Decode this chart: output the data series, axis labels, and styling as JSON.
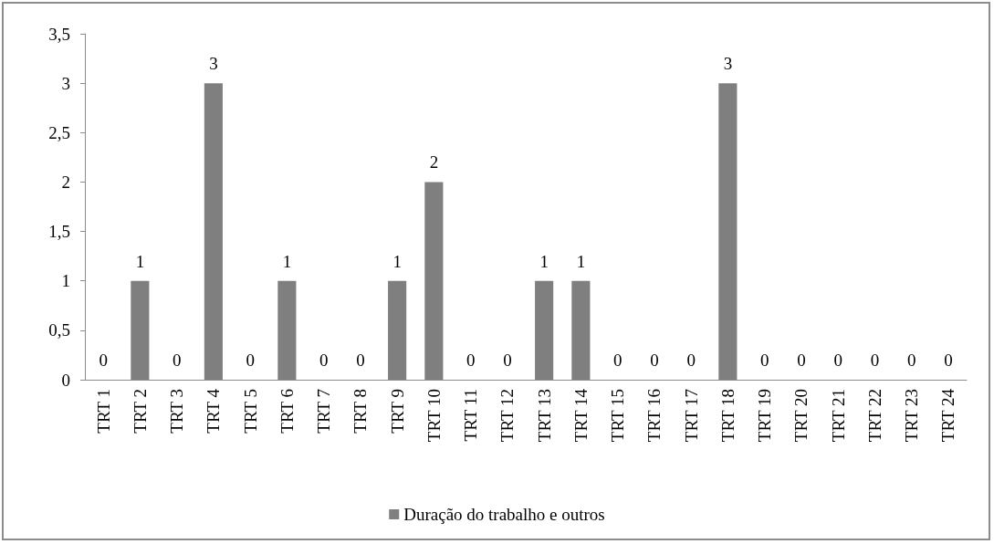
{
  "chart_data": {
    "type": "bar",
    "categories": [
      "TRT 1",
      "TRT 2",
      "TRT 3",
      "TRT 4",
      "TRT 5",
      "TRT 6",
      "TRT 7",
      "TRT 8",
      "TRT 9",
      "TRT 10",
      "TRT 11",
      "TRT 12",
      "TRT 13",
      "TRT 14",
      "TRT 15",
      "TRT 16",
      "TRT 17",
      "TRT 18",
      "TRT 19",
      "TRT 20",
      "TRT 21",
      "TRT 22",
      "TRT 23",
      "TRT 24"
    ],
    "series": [
      {
        "name": "Duração do trabalho e outros",
        "color": "#7f7f7f",
        "values": [
          0,
          1,
          0,
          3,
          0,
          1,
          0,
          0,
          1,
          2,
          0,
          0,
          1,
          1,
          0,
          0,
          0,
          3,
          0,
          0,
          0,
          0,
          0,
          0
        ]
      }
    ],
    "ylim": [
      0,
      3.5
    ],
    "yticks": [
      0,
      {
        "value": 0.5,
        "label": "0,5"
      },
      1,
      {
        "value": 1.5,
        "label": "1,5"
      },
      2,
      {
        "value": 2.5,
        "label": "2,5"
      },
      3,
      {
        "value": 3.5,
        "label": "3,5"
      }
    ],
    "grid": false,
    "legend": "bottom",
    "data_labels": true
  }
}
